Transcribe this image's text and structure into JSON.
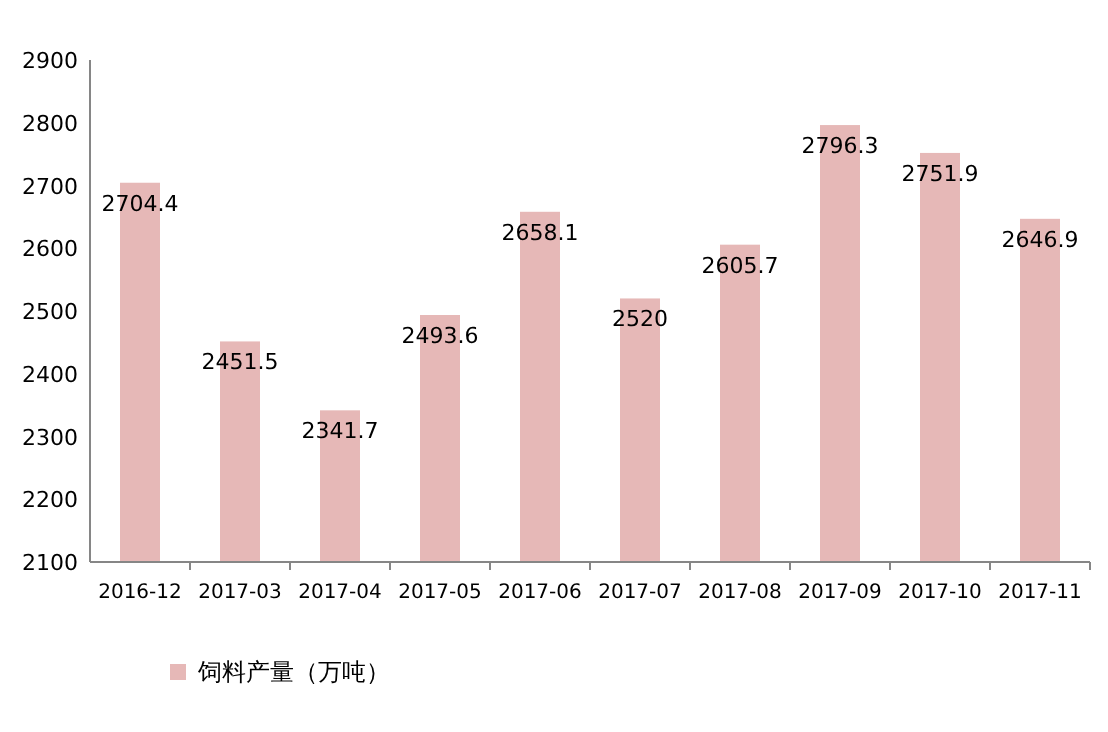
{
  "chart_data": {
    "type": "bar",
    "categories": [
      "2016-12",
      "2017-03",
      "2017-04",
      "2017-05",
      "2017-06",
      "2017-07",
      "2017-08",
      "2017-09",
      "2017-10",
      "2017-11"
    ],
    "series": [
      {
        "name": "饲料产量（万吨）",
        "color": "#e6b8b7",
        "values": [
          2704.4,
          2451.5,
          2341.7,
          2493.6,
          2658.1,
          2520,
          2605.7,
          2796.3,
          2751.9,
          2646.9
        ]
      }
    ],
    "ylim": [
      2100,
      2900
    ],
    "yticks": [
      2100,
      2200,
      2300,
      2400,
      2500,
      2600,
      2700,
      2800,
      2900
    ],
    "data_labels": true,
    "legend": "bottom left",
    "grid": false
  }
}
